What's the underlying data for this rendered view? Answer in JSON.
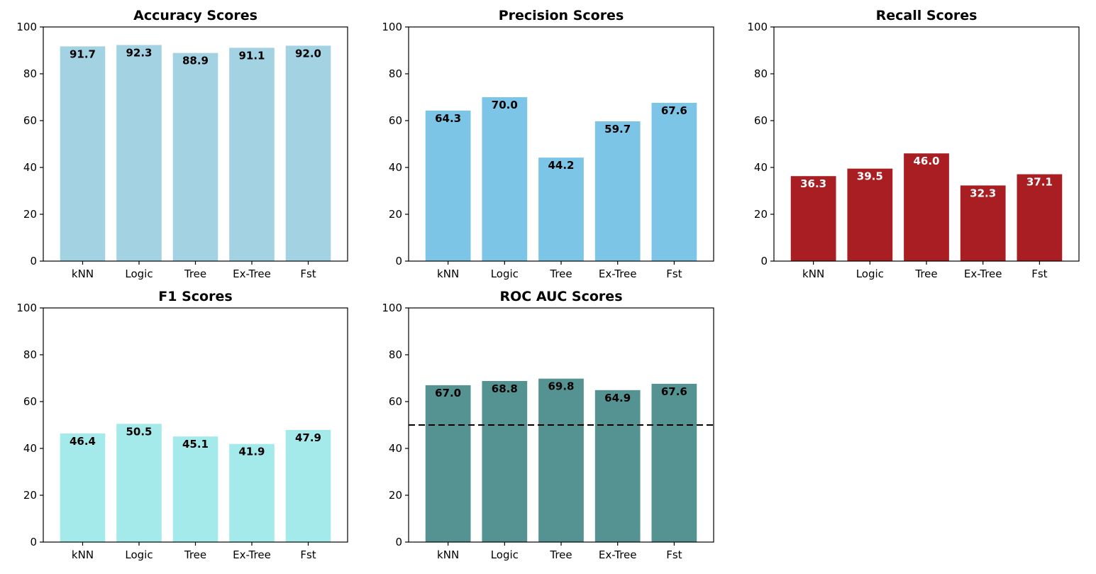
{
  "chart_data": [
    {
      "type": "bar",
      "title": "Accuracy Scores",
      "categories": [
        "kNN",
        "Logic",
        "Tree",
        "Ex-Tree",
        "Fst"
      ],
      "values": [
        91.7,
        92.3,
        88.9,
        91.1,
        92.0
      ],
      "value_labels": [
        "91.7",
        "92.3",
        "88.9",
        "91.1",
        "92.0"
      ],
      "ylim": [
        0,
        100
      ],
      "yticks": [
        "0",
        "20",
        "40",
        "60",
        "80",
        "100"
      ],
      "xlabel": "",
      "ylabel": "",
      "bar_color": "#a3d2e2",
      "label_color": "#000000",
      "grid": false
    },
    {
      "type": "bar",
      "title": "Precision Scores",
      "categories": [
        "kNN",
        "Logic",
        "Tree",
        "Ex-Tree",
        "Fst"
      ],
      "values": [
        64.3,
        70.0,
        44.2,
        59.7,
        67.6
      ],
      "value_labels": [
        "64.3",
        "70.0",
        "44.2",
        "59.7",
        "67.6"
      ],
      "ylim": [
        0,
        100
      ],
      "yticks": [
        "0",
        "20",
        "40",
        "60",
        "80",
        "100"
      ],
      "xlabel": "",
      "ylabel": "",
      "bar_color": "#7cc5e7",
      "label_color": "#000000",
      "grid": false
    },
    {
      "type": "bar",
      "title": "Recall Scores",
      "categories": [
        "kNN",
        "Logic",
        "Tree",
        "Ex-Tree",
        "Fst"
      ],
      "values": [
        36.3,
        39.5,
        46.0,
        32.3,
        37.1
      ],
      "value_labels": [
        "36.3",
        "39.5",
        "46.0",
        "32.3",
        "37.1"
      ],
      "ylim": [
        0,
        100
      ],
      "yticks": [
        "0",
        "20",
        "40",
        "60",
        "80",
        "100"
      ],
      "xlabel": "",
      "ylabel": "",
      "bar_color": "#a81e22",
      "label_color": "#ffffff",
      "grid": false
    },
    {
      "type": "bar",
      "title": "F1 Scores",
      "categories": [
        "kNN",
        "Logic",
        "Tree",
        "Ex-Tree",
        "Fst"
      ],
      "values": [
        46.4,
        50.5,
        45.1,
        41.9,
        47.9
      ],
      "value_labels": [
        "46.4",
        "50.5",
        "45.1",
        "41.9",
        "47.9"
      ],
      "ylim": [
        0,
        100
      ],
      "yticks": [
        "0",
        "20",
        "40",
        "60",
        "80",
        "100"
      ],
      "xlabel": "",
      "ylabel": "",
      "bar_color": "#a5eaea",
      "label_color": "#000000",
      "grid": false
    },
    {
      "type": "bar",
      "title": "ROC AUC Scores",
      "categories": [
        "kNN",
        "Logic",
        "Tree",
        "Ex-Tree",
        "Fst"
      ],
      "values": [
        67.0,
        68.8,
        69.8,
        64.9,
        67.6
      ],
      "value_labels": [
        "67.0",
        "68.8",
        "69.8",
        "64.9",
        "67.6"
      ],
      "ylim": [
        0,
        100
      ],
      "yticks": [
        "0",
        "20",
        "40",
        "60",
        "80",
        "100"
      ],
      "xlabel": "",
      "ylabel": "",
      "bar_color": "#559393",
      "label_color": "#000000",
      "grid": false,
      "reference_line": {
        "y": 50,
        "style": "dashed",
        "color": "#000000"
      }
    }
  ]
}
